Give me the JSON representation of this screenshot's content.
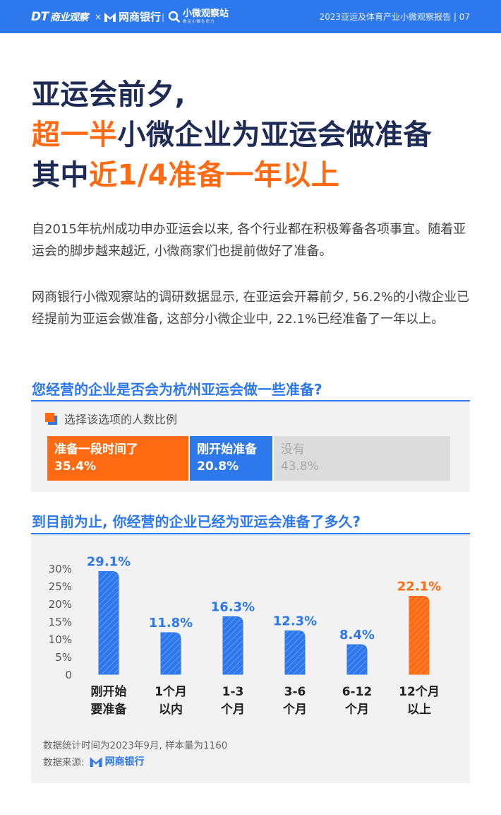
{
  "header": {
    "brand_dt": "DT",
    "brand_dt_sub": "商业观察",
    "brand_x": "×",
    "brand_mybank": "网商银行",
    "brand_sep": "|",
    "brand_station": "小微观察站",
    "brand_station_sub": "看见小微生命力",
    "report_title": "2023亚运及体育产业小微观察报告 | 07"
  },
  "headline": {
    "line1": "亚运会前夕,",
    "line2_accent": "超一半",
    "line2_rest": "小微企业为亚运会做准备",
    "line3_pre": "其中",
    "line3_accent": "近1/4准备一年以上"
  },
  "paragraphs": {
    "p1": "自2015年杭州成功申办亚运会以来, 各个行业都在积极筹备各项事宜。随着亚运会的脚步越来越近, 小微商家们也提前做好了准备。",
    "p2": "网商银行小微观察站的调研数据显示, 在亚运会开幕前夕, 56.2%的小微企业已经提前为亚运会做准备, 这部分小微企业中, 22.1%已经准备了一年以上。"
  },
  "section1": {
    "title": "您经营的企业是否会为杭州亚运会做一些准备?",
    "legend": "选择该选项的人数比例"
  },
  "section2": {
    "title": "到目前为止, 你经营的企业已经为亚运会准备了多久?"
  },
  "colors": {
    "blue": "#2e78ee",
    "orange": "#ff6a13",
    "gray": "#dcdcdc",
    "gray_text": "#a8a8a8",
    "navy": "#1d2b55"
  },
  "chart_data": [
    {
      "type": "bar",
      "stacked": true,
      "orientation": "horizontal",
      "categories": [
        "准备一段时间了",
        "刚开始准备",
        "没有"
      ],
      "values": [
        35.4,
        20.8,
        43.8
      ],
      "value_labels": [
        "35.4%",
        "20.8%",
        "43.8%"
      ],
      "colors": [
        "#ff6a13",
        "#2e78ee",
        "#dcdcdc"
      ],
      "title": "您经营的企业是否会为杭州亚运会做一些准备?",
      "legend": "选择该选项的人数比例"
    },
    {
      "type": "bar",
      "categories": [
        [
          "刚开始",
          "要准备"
        ],
        [
          "1个月",
          "以内"
        ],
        [
          "1-3",
          "个月"
        ],
        [
          "3-6",
          "个月"
        ],
        [
          "6-12",
          "个月"
        ],
        [
          "12个月",
          "以上"
        ]
      ],
      "values": [
        29.1,
        11.8,
        16.3,
        12.3,
        8.4,
        22.1
      ],
      "value_labels": [
        "29.1%",
        "11.8%",
        "16.3%",
        "12.3%",
        "8.4%",
        "22.1%"
      ],
      "highlight_index": 5,
      "y_ticks": [
        "30%",
        "25%",
        "20%",
        "15%",
        "10%",
        "5%",
        "0"
      ],
      "ylim": [
        0,
        30
      ],
      "title": "到目前为止, 你经营的企业已经为亚运会准备了多久?",
      "xlabel": "",
      "ylabel": ""
    }
  ],
  "footer": {
    "note": "数据统计时间为2023年9月, 样本量为1160",
    "source_label": "数据来源:",
    "source_logo": "网商银行"
  }
}
